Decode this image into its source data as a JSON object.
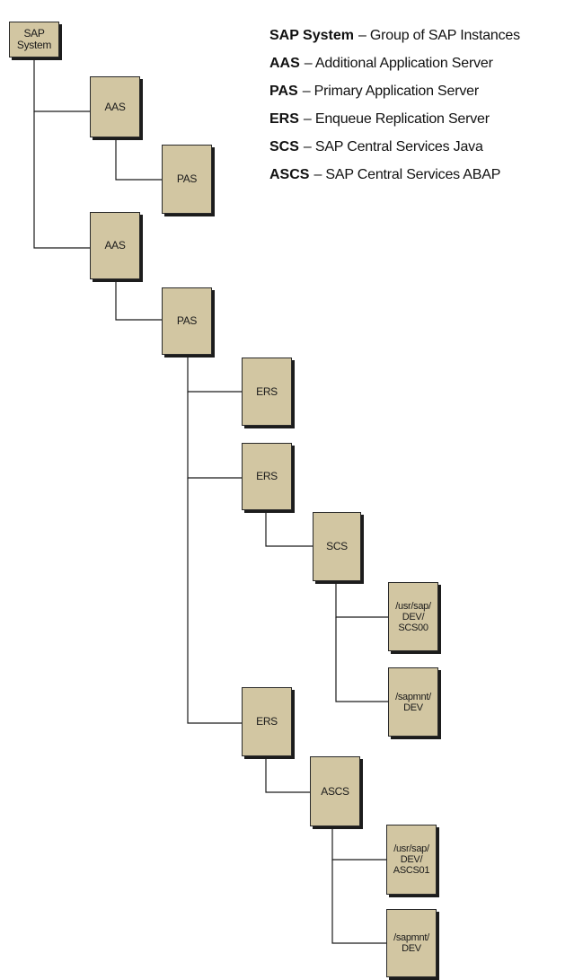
{
  "legend": [
    {
      "term": "SAP System",
      "desc": "– Group of SAP Instances"
    },
    {
      "term": "AAS",
      "desc": "– Additional Application Server"
    },
    {
      "term": "PAS",
      "desc": "– Primary Application Server"
    },
    {
      "term": "ERS",
      "desc": "– Enqueue Replication Server"
    },
    {
      "term": "SCS",
      "desc": "– SAP Central Services Java"
    },
    {
      "term": "ASCS",
      "desc": "– SAP Central Services ABAP"
    }
  ],
  "nodes": {
    "sap_system": "SAP\nSystem",
    "aas_1": "AAS",
    "pas_1": "PAS",
    "aas_2": "AAS",
    "pas_2": "PAS",
    "ers_1": "ERS",
    "ers_2": "ERS",
    "scs": "SCS",
    "usr_sap_dev_scs00": "/usr/sap/\nDEV/\nSCS00",
    "sapmnt_dev_1": "/sapmnt/\nDEV",
    "ers_3": "ERS",
    "ascs": "ASCS",
    "usr_sap_dev_ascs01": "/usr/sap/\nDEV/\nASCS01",
    "sapmnt_dev_2": "/sapmnt/\nDEV"
  },
  "colors": {
    "node_fill": "#d2c6a2",
    "node_border": "#2a2a2a",
    "connector": "#1a1a1a"
  }
}
